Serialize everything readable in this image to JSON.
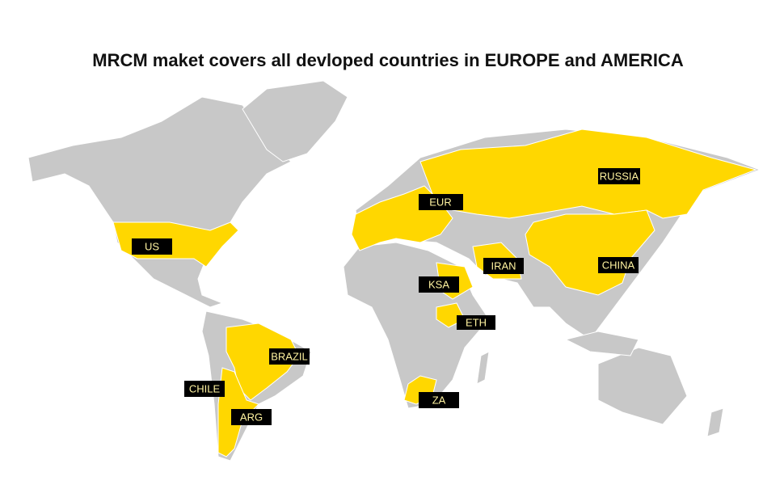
{
  "title": "MRCM maket covers all devloped countries in EUROPE and  AMERICA",
  "labels": [
    {
      "text": "US"
    },
    {
      "text": "EUR"
    },
    {
      "text": "RUSSIA"
    },
    {
      "text": "IRAN"
    },
    {
      "text": "CHINA"
    },
    {
      "text": "KSA"
    },
    {
      "text": "ETH"
    },
    {
      "text": "BRAZIL"
    },
    {
      "text": "CHILE"
    },
    {
      "text": "ARG"
    },
    {
      "text": "ZA"
    }
  ]
}
